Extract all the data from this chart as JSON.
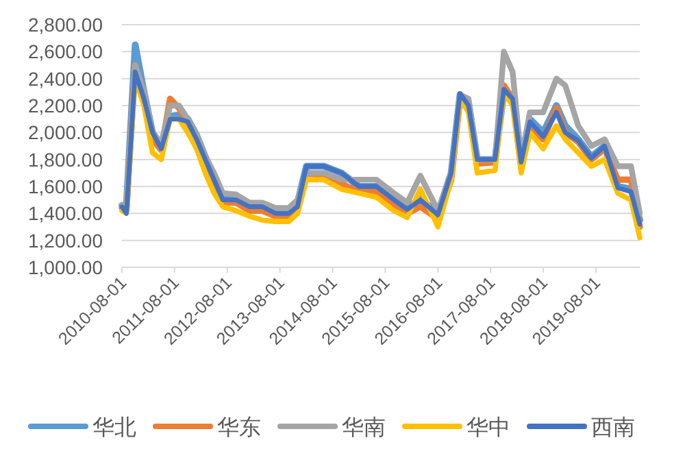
{
  "chart_data": {
    "type": "line",
    "x": [
      "2010-08",
      "2010-09",
      "2010-11",
      "2011-01",
      "2011-03",
      "2011-05",
      "2011-07",
      "2011-09",
      "2011-11",
      "2012-01",
      "2012-03",
      "2012-05",
      "2012-07",
      "2012-10",
      "2013-01",
      "2013-04",
      "2013-07",
      "2013-10",
      "2013-12",
      "2014-02",
      "2014-06",
      "2014-10",
      "2015-02",
      "2015-06",
      "2015-10",
      "2016-01",
      "2016-04",
      "2016-08",
      "2016-11",
      "2017-01",
      "2017-03",
      "2017-05",
      "2017-09",
      "2017-11",
      "2018-01",
      "2018-03",
      "2018-05",
      "2018-08",
      "2018-11",
      "2019-01",
      "2019-04",
      "2019-07",
      "2019-10",
      "2020-01",
      "2020-04",
      "2020-06"
    ],
    "series": [
      {
        "name": "华北",
        "color": "#5b9bd5",
        "values": [
          1460,
          1450,
          2650,
          2300,
          2000,
          1900,
          2120,
          2130,
          2100,
          1980,
          1820,
          1680,
          1520,
          1500,
          1460,
          1450,
          1420,
          1420,
          1480,
          1750,
          1750,
          1700,
          1600,
          1600,
          1510,
          1440,
          1510,
          1400,
          1700,
          2280,
          2220,
          1800,
          1800,
          2300,
          2250,
          1800,
          2100,
          2000,
          2200,
          2050,
          1950,
          1820,
          1900,
          1600,
          1580,
          1350
        ]
      },
      {
        "name": "华东",
        "color": "#ed7d31",
        "values": [
          1440,
          1420,
          2500,
          2280,
          1950,
          1870,
          2250,
          2180,
          2080,
          1950,
          1750,
          1600,
          1480,
          1480,
          1420,
          1420,
          1380,
          1380,
          1460,
          1700,
          1680,
          1620,
          1560,
          1560,
          1450,
          1400,
          1450,
          1360,
          1650,
          2250,
          2200,
          1770,
          1780,
          2350,
          2250,
          1760,
          2050,
          1950,
          2180,
          2000,
          1930,
          1800,
          1880,
          1650,
          1650,
          1300
        ]
      },
      {
        "name": "华南",
        "color": "#a5a5a5",
        "values": [
          1460,
          1450,
          2500,
          2300,
          2000,
          1920,
          2200,
          2200,
          2100,
          1980,
          1820,
          1700,
          1550,
          1540,
          1480,
          1480,
          1440,
          1440,
          1500,
          1700,
          1700,
          1650,
          1650,
          1650,
          1550,
          1480,
          1680,
          1420,
          1700,
          2280,
          2250,
          1800,
          1800,
          2600,
          2450,
          1800,
          2150,
          2150,
          2400,
          2350,
          2050,
          1900,
          1950,
          1750,
          1750,
          1400
        ]
      },
      {
        "name": "华中",
        "color": "#ffc000",
        "values": [
          1420,
          1400,
          2400,
          2200,
          1850,
          1800,
          2100,
          2100,
          2000,
          1880,
          1700,
          1550,
          1450,
          1420,
          1380,
          1350,
          1340,
          1340,
          1400,
          1650,
          1650,
          1580,
          1550,
          1520,
          1420,
          1370,
          1580,
          1300,
          1650,
          2250,
          2150,
          1700,
          1720,
          2300,
          2200,
          1700,
          2000,
          1880,
          2050,
          1950,
          1850,
          1750,
          1800,
          1550,
          1500,
          1220
        ]
      },
      {
        "name": "西南",
        "color": "#4472c4",
        "values": [
          1450,
          1400,
          2450,
          2250,
          2000,
          1880,
          2100,
          2100,
          2080,
          1950,
          1800,
          1650,
          1500,
          1500,
          1450,
          1450,
          1400,
          1400,
          1450,
          1750,
          1750,
          1700,
          1600,
          1600,
          1500,
          1430,
          1500,
          1390,
          1700,
          2290,
          2200,
          1800,
          1800,
          2320,
          2250,
          1780,
          2080,
          1970,
          2150,
          2000,
          1940,
          1810,
          1900,
          1590,
          1560,
          1320
        ]
      }
    ],
    "xlim": [
      "2010-08-01",
      "2020-06-01"
    ],
    "xticks": [
      "2010-08-01",
      "2011-08-01",
      "2012-08-01",
      "2013-08-01",
      "2014-08-01",
      "2015-08-01",
      "2016-08-01",
      "2017-08-01",
      "2018-08-01",
      "2019-08-01"
    ],
    "ylim": [
      1000,
      2800
    ],
    "yticks": [
      {
        "value": 1000,
        "label": "1,000.00"
      },
      {
        "value": 1200,
        "label": "1,200.00"
      },
      {
        "value": 1400,
        "label": "1,400.00"
      },
      {
        "value": 1600,
        "label": "1,600.00"
      },
      {
        "value": 1800,
        "label": "1,800.00"
      },
      {
        "value": 2000,
        "label": "2,000.00"
      },
      {
        "value": 2200,
        "label": "2,200.00"
      },
      {
        "value": 2400,
        "label": "2,400.00"
      },
      {
        "value": 2600,
        "label": "2,600.00"
      },
      {
        "value": 2800,
        "label": "2,800.00"
      }
    ],
    "grid": "y",
    "legend": "bottom",
    "line_style": "solid"
  }
}
